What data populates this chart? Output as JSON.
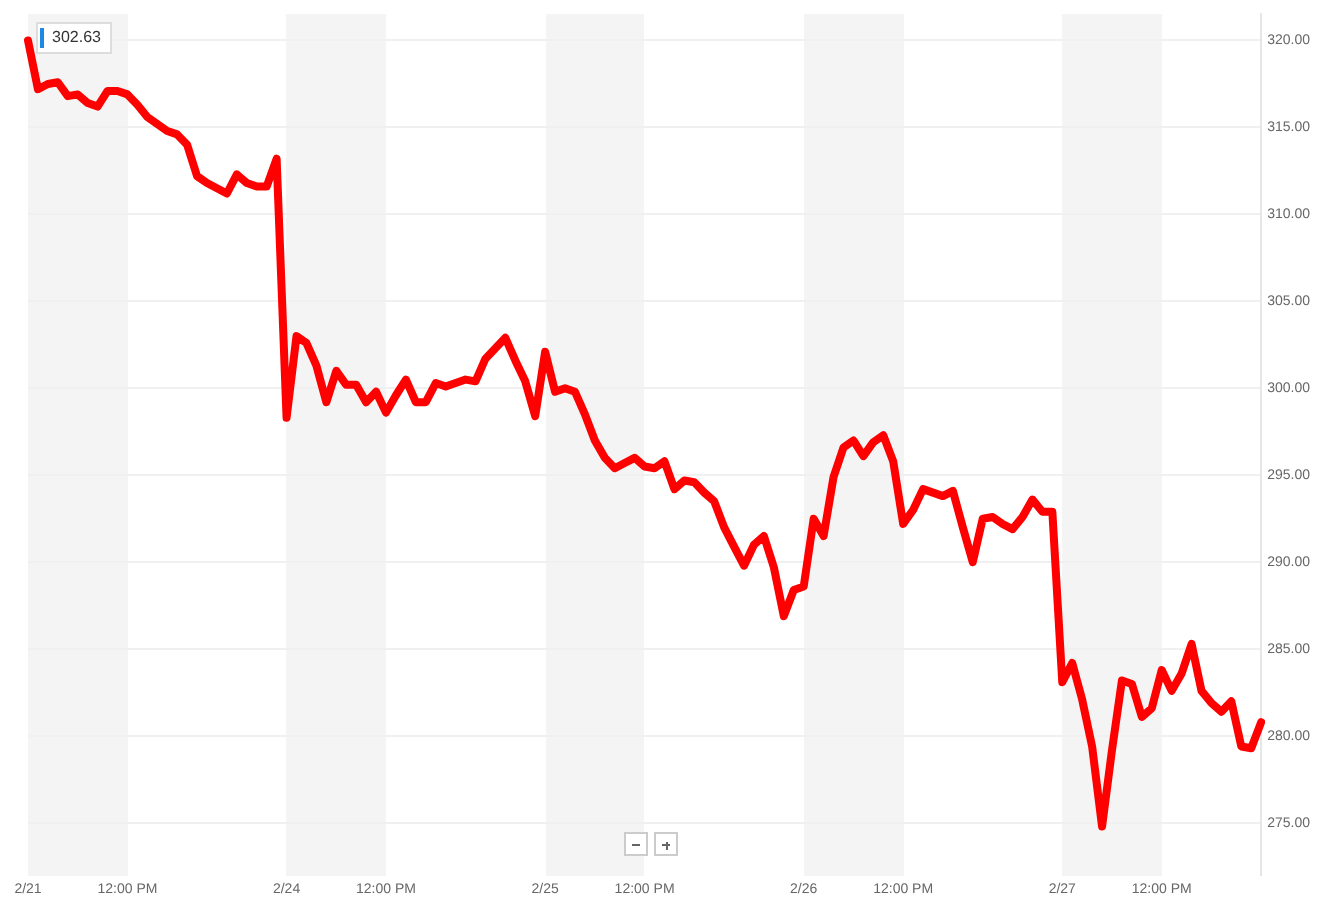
{
  "chart_data": {
    "type": "line",
    "annotations": [
      "302.63"
    ],
    "categories": [
      "2/21",
      null,
      null,
      null,
      null,
      null,
      null,
      null,
      null,
      null,
      "12:00 PM",
      null,
      null,
      null,
      null,
      null,
      null,
      null,
      null,
      null,
      null,
      null,
      null,
      null,
      null,
      null,
      "2/24",
      null,
      null,
      null,
      null,
      null,
      null,
      null,
      null,
      null,
      "12:00 PM",
      null,
      null,
      null,
      null,
      null,
      null,
      null,
      null,
      null,
      null,
      null,
      null,
      null,
      null,
      null,
      "2/25",
      null,
      null,
      null,
      null,
      null,
      null,
      null,
      null,
      null,
      "12:00 PM",
      null,
      null,
      null,
      null,
      null,
      null,
      null,
      null,
      null,
      null,
      null,
      null,
      null,
      null,
      null,
      "2/26",
      null,
      null,
      null,
      null,
      null,
      null,
      null,
      null,
      null,
      "12:00 PM",
      null,
      null,
      null,
      null,
      null,
      null,
      null,
      null,
      null,
      null,
      null,
      null,
      null,
      null,
      null,
      "2/27",
      null,
      null,
      null,
      null,
      null,
      null,
      null,
      null,
      null,
      "12:00 PM",
      null,
      null,
      null,
      null,
      null,
      null,
      null,
      null,
      null,
      null
    ],
    "ylim": [
      272,
      321.5
    ],
    "yticks": [
      {
        "value": 275,
        "label": "275.00"
      },
      {
        "value": 280,
        "label": "280.00"
      },
      {
        "value": 285,
        "label": "285.00"
      },
      {
        "value": 290,
        "label": "290.00"
      },
      {
        "value": 295,
        "label": "295.00"
      },
      {
        "value": 300,
        "label": "300.00"
      },
      {
        "value": 305,
        "label": "305.00"
      },
      {
        "value": 310,
        "label": "310.00"
      },
      {
        "value": 315,
        "label": "315.00"
      },
      {
        "value": 320,
        "label": "320.00"
      }
    ],
    "grid": "y",
    "series": [
      {
        "color": "#ff0000",
        "values": [
          320.0,
          317.2,
          317.5,
          317.6,
          316.8,
          316.9,
          316.4,
          316.2,
          317.1,
          317.1,
          316.9,
          316.3,
          315.6,
          315.2,
          314.8,
          314.6,
          314.0,
          312.2,
          311.8,
          311.5,
          311.2,
          312.3,
          311.8,
          311.6,
          311.6,
          313.2,
          298.3,
          303.0,
          302.6,
          301.3,
          299.2,
          301.0,
          300.2,
          300.2,
          299.2,
          299.8,
          298.6,
          299.6,
          300.5,
          299.2,
          299.2,
          300.3,
          300.1,
          300.3,
          300.5,
          300.4,
          301.7,
          302.3,
          302.9,
          301.6,
          300.4,
          298.4,
          302.1,
          299.8,
          300.0,
          299.8,
          298.5,
          297.0,
          296.0,
          295.4,
          295.7,
          296.0,
          295.5,
          295.4,
          295.8,
          294.2,
          294.7,
          294.6,
          294.0,
          293.5,
          292.0,
          290.9,
          289.8,
          291.0,
          291.5,
          289.7,
          286.9,
          288.4,
          288.6,
          292.5,
          291.5,
          294.9,
          296.6,
          297.0,
          296.1,
          296.9,
          297.3,
          295.8,
          292.2,
          293.0,
          294.2,
          294.0,
          293.8,
          294.1,
          292.0,
          290.0,
          292.5,
          292.6,
          292.2,
          291.9,
          292.6,
          293.6,
          292.9,
          292.9,
          283.1,
          284.2,
          282.1,
          279.4,
          274.8,
          279.2,
          283.2,
          283.0,
          281.1,
          281.6,
          283.8,
          282.6,
          283.6,
          285.3,
          282.6,
          281.9,
          281.4,
          282.0,
          279.4,
          279.3,
          280.8
        ]
      }
    ]
  }
}
